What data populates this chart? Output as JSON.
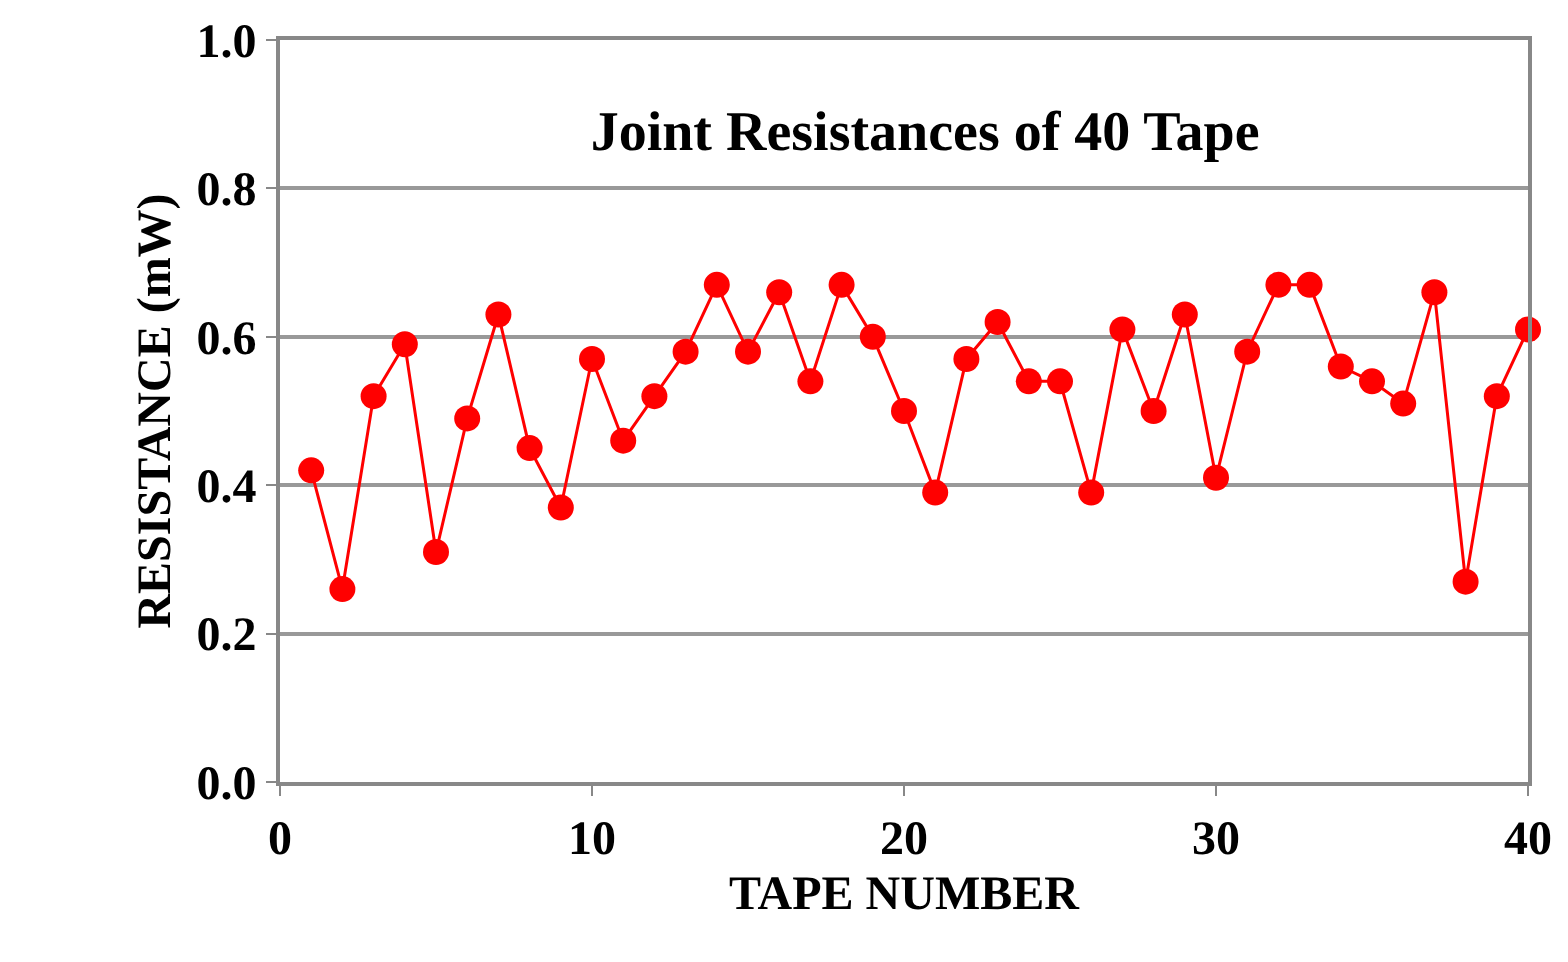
{
  "chart_data": {
    "type": "line",
    "title": "Joint Resistances of 40 Tape",
    "xlabel": "TAPE NUMBER",
    "ylabel": "RESISTANCE (mW)",
    "x": [
      1,
      2,
      3,
      4,
      5,
      6,
      7,
      8,
      9,
      10,
      11,
      12,
      13,
      14,
      15,
      16,
      17,
      18,
      19,
      20,
      21,
      22,
      23,
      24,
      25,
      26,
      27,
      28,
      29,
      30,
      31,
      32,
      33,
      34,
      35,
      36,
      37,
      38,
      39,
      40
    ],
    "series": [
      {
        "color": "#ff0000",
        "values": [
          0.42,
          0.26,
          0.52,
          0.59,
          0.31,
          0.49,
          0.63,
          0.45,
          0.37,
          0.57,
          0.46,
          0.52,
          0.58,
          0.67,
          0.58,
          0.66,
          0.54,
          0.67,
          0.6,
          0.5,
          0.39,
          0.57,
          0.62,
          0.54,
          0.54,
          0.39,
          0.61,
          0.5,
          0.63,
          0.41,
          0.58,
          0.67,
          0.67,
          0.56,
          0.54,
          0.51,
          0.66,
          0.27,
          0.52,
          0.61
        ]
      }
    ],
    "xlim": [
      0,
      40
    ],
    "xticks": [
      0,
      10,
      20,
      30,
      40
    ],
    "ylim": [
      0,
      1
    ],
    "yticks": [
      {
        "value": 0,
        "label": "0.0"
      },
      {
        "value": 0.2,
        "label": "0.2"
      },
      {
        "value": 0.4,
        "label": "0.4"
      },
      {
        "value": 0.6,
        "label": "0.6"
      },
      {
        "value": 0.8,
        "label": "0.8"
      },
      {
        "value": 1,
        "label": "1.0"
      }
    ],
    "grid": "y",
    "marker": "circle",
    "line_style": "solid"
  }
}
